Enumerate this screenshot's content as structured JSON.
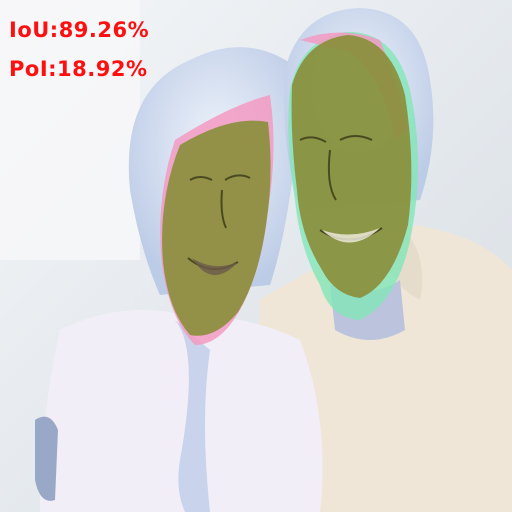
{
  "metrics": {
    "iou": "IoU:89.26%",
    "pol": "PoI:18.92%",
    "text_color": "#ff1010"
  },
  "overlay_colors": {
    "prediction": "#8a8f3c",
    "false_positive": "#f39ac2",
    "false_negative": "#82e6b8"
  },
  "scene": {
    "icons": [
      "elderly-woman-figure",
      "elderly-man-figure",
      "face-mask-overlay"
    ]
  }
}
